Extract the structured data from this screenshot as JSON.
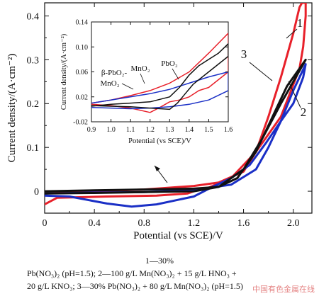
{
  "chart_data": [
    {
      "type": "line",
      "xlabel": "Potential (vs SCE)/V",
      "ylabel": "Current density/(A·cm⁻²)",
      "xlim": [
        0,
        2.15
      ],
      "ylim": [
        -0.05,
        0.43
      ],
      "xticks": [
        "0",
        "0.4",
        "0.8",
        "1.2",
        "1.6",
        "2.0"
      ],
      "yticks": [
        "0",
        "0.1",
        "0.2",
        "0.3",
        "0.4"
      ],
      "curve_labels": [
        "1",
        "2",
        "3"
      ],
      "series": [
        {
          "color": "#e8202a",
          "x": [
            0,
            0.4,
            0.8,
            1.2,
            1.4,
            1.6,
            1.7,
            1.8,
            1.9,
            2.0,
            2.05,
            2.07,
            2.1,
            2.1,
            2.08,
            2.05,
            1.9,
            1.7,
            1.5,
            1.3,
            1.22,
            1.15,
            0.9,
            0.5,
            0.1,
            0
          ],
          "y": [
            -0.005,
            0.0,
            0.004,
            0.012,
            0.02,
            0.045,
            0.09,
            0.17,
            0.26,
            0.36,
            0.42,
            0.43,
            0.43,
            0.4,
            0.33,
            0.28,
            0.17,
            0.09,
            0.03,
            0.006,
            0.002,
            -0.005,
            -0.01,
            -0.012,
            -0.015,
            -0.03
          ]
        },
        {
          "color": "#1a2fc6",
          "x": [
            0,
            0.4,
            0.8,
            1.2,
            1.5,
            1.7,
            1.8,
            1.9,
            2.0,
            2.05,
            2.1,
            2.08,
            2.0,
            1.9,
            1.78,
            1.65,
            1.5,
            1.35,
            1.2,
            0.9,
            0.7,
            0.5,
            0.2,
            0
          ],
          "y": [
            -0.005,
            -0.003,
            -0.002,
            0.003,
            0.015,
            0.05,
            0.1,
            0.16,
            0.23,
            0.26,
            0.29,
            0.26,
            0.2,
            0.16,
            0.11,
            0.06,
            0.03,
            0.01,
            -0.012,
            -0.03,
            -0.035,
            -0.028,
            -0.012,
            -0.01
          ]
        },
        {
          "color": "#111111",
          "x": [
            0,
            0.4,
            0.8,
            1.2,
            1.4,
            1.55,
            1.7,
            1.85,
            1.95,
            2.05,
            2.1,
            2.08,
            2.0,
            1.9,
            1.75,
            1.6,
            1.4,
            1.2,
            0.8,
            0.4,
            0
          ],
          "y": [
            0.0,
            0.002,
            0.004,
            0.006,
            0.01,
            0.03,
            0.09,
            0.18,
            0.24,
            0.28,
            0.3,
            0.29,
            0.25,
            0.2,
            0.12,
            0.05,
            0.01,
            0.0,
            -0.002,
            -0.004,
            -0.005
          ]
        }
      ]
    },
    {
      "type": "line",
      "inset": true,
      "xlabel": "Potential (vs SCE)/V",
      "ylabel": "Current density/(A·cm⁻²)",
      "xlim": [
        0.9,
        1.6
      ],
      "ylim": [
        -0.02,
        0.14
      ],
      "xticks": [
        "0.9",
        "1.0",
        "1.1",
        "1.2",
        "1.3",
        "1.4",
        "1.5",
        "1.6"
      ],
      "yticks": [
        "-0.02",
        "0.02",
        "0.06",
        "0.10",
        "0.14"
      ],
      "curve_labels": [
        "MnO₂",
        "PbO₂",
        "β-PbO₂-",
        "MnO₂"
      ],
      "series": [
        {
          "color": "#e8202a",
          "x": [
            0.9,
            1.0,
            1.1,
            1.2,
            1.3,
            1.4,
            1.5,
            1.6,
            1.6,
            1.5,
            1.45,
            1.4,
            1.35,
            1.3,
            1.25,
            1.2,
            1.1,
            1.0,
            0.9
          ],
          "y": [
            0.01,
            0.015,
            0.022,
            0.03,
            0.042,
            0.06,
            0.09,
            0.122,
            0.06,
            0.035,
            0.03,
            0.02,
            0.015,
            0.012,
            0.003,
            -0.005,
            0.002,
            0.006,
            0.008
          ]
        },
        {
          "color": "#1a2fc6",
          "x": [
            0.9,
            1.0,
            1.1,
            1.2,
            1.3,
            1.4,
            1.5,
            1.6,
            1.6,
            1.5,
            1.4,
            1.3,
            1.2,
            1.1,
            1.0,
            0.9
          ],
          "y": [
            0.01,
            0.015,
            0.02,
            0.025,
            0.032,
            0.042,
            0.052,
            0.06,
            0.03,
            0.015,
            0.008,
            0.004,
            0.002,
            0.001,
            0.002,
            0.003
          ]
        },
        {
          "color": "#111111",
          "x": [
            0.9,
            1.0,
            1.1,
            1.2,
            1.3,
            1.35,
            1.4,
            1.45,
            1.5,
            1.55,
            1.6,
            1.6,
            1.5,
            1.42,
            1.38,
            1.34,
            1.3,
            1.2,
            1.1,
            1.0,
            0.9
          ],
          "y": [
            0.005,
            0.008,
            0.01,
            0.012,
            0.02,
            0.035,
            0.055,
            0.07,
            0.08,
            0.09,
            0.105,
            0.085,
            0.06,
            0.04,
            0.025,
            0.01,
            0.0,
            0.002,
            0.004,
            0.005,
            0.006
          ]
        }
      ]
    }
  ],
  "caption": {
    "line1": "1—30%",
    "line2": "Pb(NO₃)₂ (pH=1.5); 2—100 g/L Mn(NO₃)₂ + 15 g/L HNO₃ +",
    "line3": "20 g/L KNO₃; 3—30% Pb(NO₃)₂ + 80 g/L Mn(NO₃)₂ (pH=1.5)"
  },
  "watermark": "中国有色金属在线"
}
